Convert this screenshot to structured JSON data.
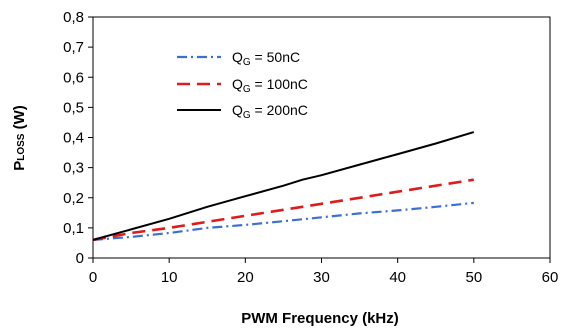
{
  "chart_data": {
    "type": "line",
    "xlabel": "PWM Frequency (kHz)",
    "ylabel": {
      "main": "P",
      "sub": "LOSS",
      "unit": " (W)"
    },
    "xlim": [
      0,
      60
    ],
    "ylim": [
      0,
      0.8
    ],
    "x_ticks": [
      "0",
      "10",
      "20",
      "30",
      "40",
      "50",
      "60"
    ],
    "y_ticks": [
      "0",
      "0,1",
      "0,2",
      "0,3",
      "0,4",
      "0,5",
      "0,6",
      "0,7",
      "0,8"
    ],
    "grid": false,
    "legend_position": "top-center",
    "series": [
      {
        "name": "QG = 50nC",
        "legend": {
          "main": "Q",
          "sub": "G",
          "rest": " = 50nC"
        },
        "color": "#3a6fd8",
        "style": "dash-dot",
        "points": [
          [
            0,
            0.06
          ],
          [
            5,
            0.07
          ],
          [
            10,
            0.083
          ],
          [
            15,
            0.1
          ],
          [
            20,
            0.11
          ],
          [
            25,
            0.122
          ],
          [
            30,
            0.135
          ],
          [
            35,
            0.148
          ],
          [
            40,
            0.158
          ],
          [
            45,
            0.17
          ],
          [
            50,
            0.183
          ]
        ]
      },
      {
        "name": "QG = 100nC",
        "legend": {
          "main": "Q",
          "sub": "G",
          "rest": " = 100nC"
        },
        "color": "#e01b1b",
        "style": "dashed",
        "points": [
          [
            0,
            0.06
          ],
          [
            5,
            0.083
          ],
          [
            10,
            0.1
          ],
          [
            15,
            0.12
          ],
          [
            20,
            0.14
          ],
          [
            25,
            0.16
          ],
          [
            30,
            0.18
          ],
          [
            35,
            0.2
          ],
          [
            40,
            0.22
          ],
          [
            45,
            0.24
          ],
          [
            50,
            0.26
          ]
        ]
      },
      {
        "name": "QG = 200nC",
        "legend": {
          "main": "Q",
          "sub": "G",
          "rest": " = 200nC"
        },
        "color": "#000000",
        "style": "solid",
        "points": [
          [
            0,
            0.06
          ],
          [
            5,
            0.095
          ],
          [
            10,
            0.13
          ],
          [
            15,
            0.17
          ],
          [
            20,
            0.205
          ],
          [
            25,
            0.24
          ],
          [
            27.5,
            0.26
          ],
          [
            30,
            0.275
          ],
          [
            35,
            0.31
          ],
          [
            40,
            0.345
          ],
          [
            45,
            0.38
          ],
          [
            50,
            0.418
          ]
        ]
      }
    ]
  }
}
